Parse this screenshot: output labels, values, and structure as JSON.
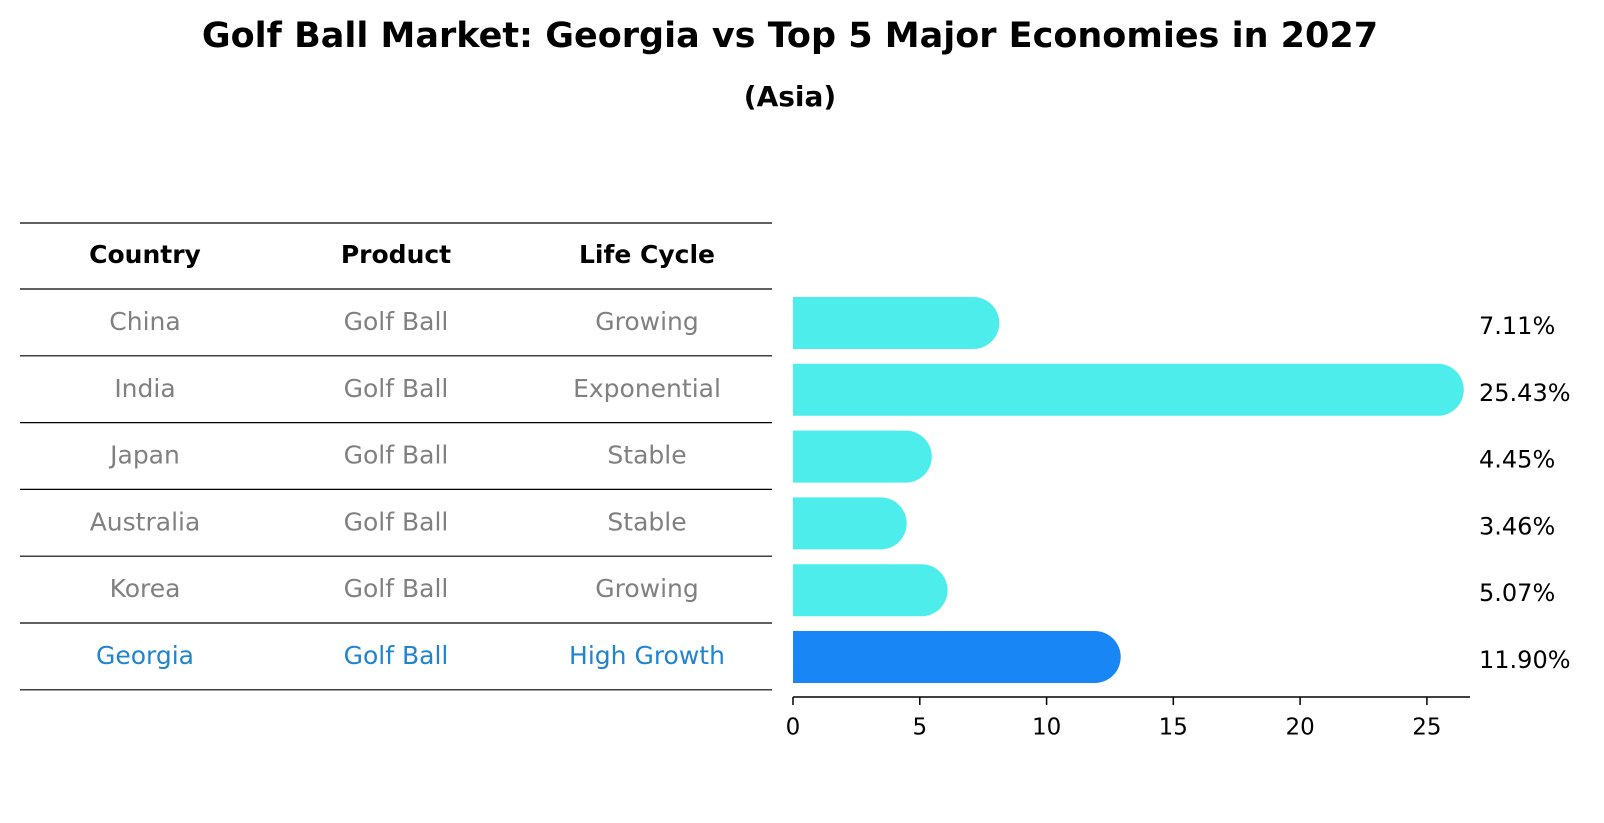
{
  "title": "Golf Ball Market: Georgia vs Top 5 Major Economies in 2027",
  "subtitle": "(Asia)",
  "colors": {
    "bar": "#4cedeb",
    "highlight_bar": "#1887f5",
    "row_text": "#808080",
    "highlight_text": "#1f84d1",
    "header_text": "#000000",
    "rule": "#000000"
  },
  "chart_data": [
    {
      "type": "table",
      "columns": [
        "Country",
        "Product",
        "Life Cycle"
      ],
      "rows": [
        [
          "China",
          "Golf Ball",
          "Growing"
        ],
        [
          "India",
          "Golf Ball",
          "Exponential"
        ],
        [
          "Japan",
          "Golf Ball",
          "Stable"
        ],
        [
          "Australia",
          "Golf Ball",
          "Stable"
        ],
        [
          "Korea",
          "Golf Ball",
          "Growing"
        ],
        [
          "Georgia",
          "Golf Ball",
          "High Growth"
        ]
      ],
      "highlight_row": "Georgia"
    },
    {
      "type": "bar",
      "orientation": "horizontal",
      "categories": [
        "China",
        "India",
        "Japan",
        "Australia",
        "Korea",
        "Georgia"
      ],
      "values": [
        7.11,
        25.43,
        4.45,
        3.46,
        5.07,
        11.9
      ],
      "value_labels": [
        "7.11%",
        "25.43%",
        "4.45%",
        "3.46%",
        "5.07%",
        "11.90%"
      ],
      "highlight": "Georgia",
      "xlim": [
        0,
        26.7
      ],
      "xticks": [
        0,
        5,
        10,
        15,
        20,
        25
      ],
      "xlabel": "",
      "ylabel": "",
      "grid": false
    }
  ]
}
